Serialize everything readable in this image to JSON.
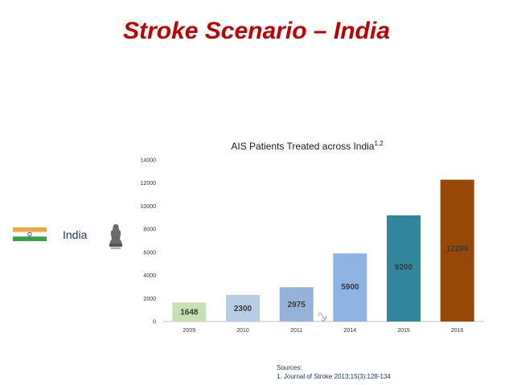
{
  "slide": {
    "title": "Stroke Scenario – India",
    "country_label": "India",
    "sources_heading": "Sources:",
    "source_1": "1. Journal of Stroke 2013;15(3):128-134"
  },
  "icons": {
    "flag": "india-flag-icon",
    "emblem": "india-emblem-icon",
    "curve": "squiggle-icon"
  },
  "chart_data": {
    "type": "bar",
    "title": "AIS Patients Treated across India",
    "title_superscript": "1,2",
    "categories": [
      "2009",
      "2010",
      "2011",
      "2014",
      "2015",
      "2016"
    ],
    "values": [
      1648,
      2300,
      2975,
      5900,
      9200,
      12286
    ],
    "value_labels": [
      "1648",
      "2300",
      "2975",
      "5900",
      "9200",
      "12286"
    ],
    "bar_colors": [
      "#c6e0b4",
      "#b8cce4",
      "#95b3d7",
      "#8db4e2",
      "#31869b",
      "#974706"
    ],
    "ylim": [
      0,
      14000
    ],
    "yticks": [
      0,
      2000,
      4000,
      6000,
      8000,
      10000,
      12000,
      14000
    ],
    "ytick_labels": [
      "0",
      "2000",
      "4000",
      "6000",
      "8000",
      "10000",
      "12000",
      "14000"
    ],
    "grid": false,
    "legend": "none"
  }
}
